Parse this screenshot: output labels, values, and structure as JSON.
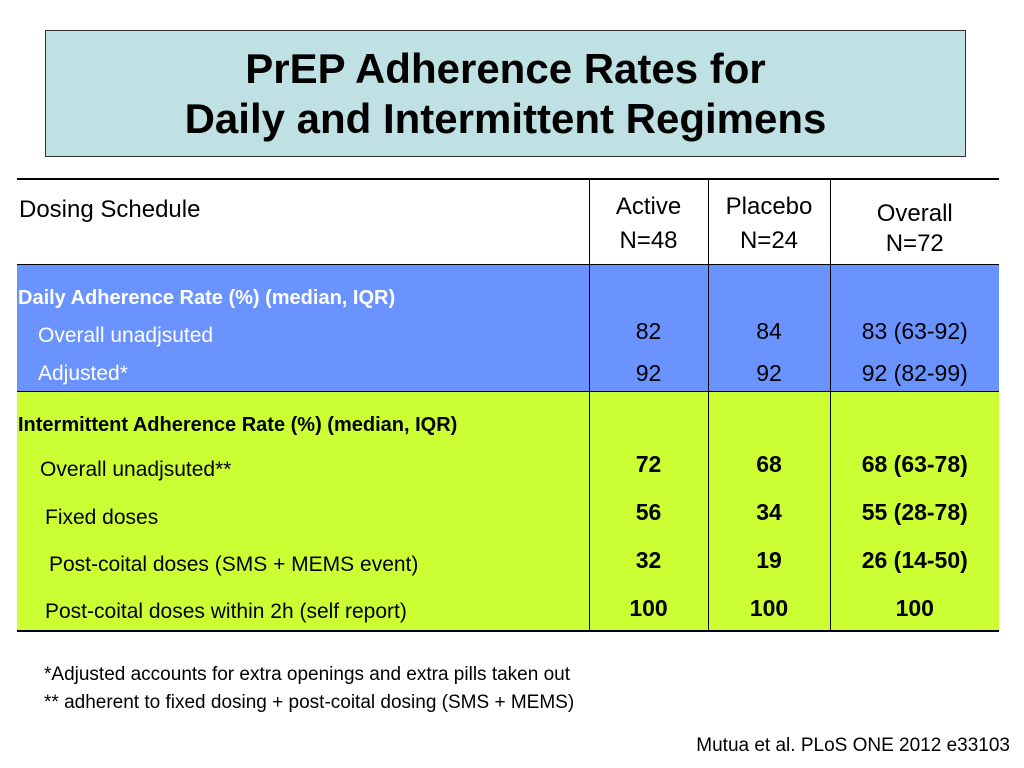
{
  "title": {
    "line1": "PrEP Adherence Rates for",
    "line2": "Daily and Intermittent Regimens"
  },
  "colors": {
    "title_bg": "#bfe1e3",
    "daily_bg": "#6b93ff",
    "intermittent_bg": "#ccff33"
  },
  "table": {
    "headers": {
      "schedule": "Dosing Schedule",
      "active": "Active",
      "active_n": "N=48",
      "placebo": "Placebo",
      "placebo_n": "N=24",
      "overall": "Overall",
      "overall_n": "N=72"
    },
    "daily": {
      "title": "Daily Adherence Rate (%)  (median, IQR)",
      "rows": [
        {
          "label": "Overall unadjsuted",
          "active": "82",
          "placebo": "84",
          "overall": "83 (63-92)"
        },
        {
          "label": "Adjusted*",
          "active": "92",
          "placebo": "92",
          "overall": "92 (82-99)"
        }
      ]
    },
    "intermittent": {
      "title": "Intermittent Adherence Rate (%)  (median, IQR)",
      "rows": [
        {
          "label": "Overall unadjsuted**",
          "active": "72",
          "placebo": "68",
          "overall": "68 (63-78)"
        },
        {
          "label": "Fixed doses",
          "active": "56",
          "placebo": "34",
          "overall": "55 (28-78)"
        },
        {
          "label": "Post-coital doses (SMS + MEMS event)",
          "active": "32",
          "placebo": "19",
          "overall": "26 (14-50)"
        },
        {
          "label": "Post-coital doses within 2h (self report)",
          "active": "100",
          "placebo": "100",
          "overall": "100"
        }
      ]
    }
  },
  "footnotes": [
    "*Adjusted accounts for extra openings and extra pills taken out",
    "** adherent to fixed dosing + post-coital dosing (SMS + MEMS)"
  ],
  "citation": "Mutua et al. PLoS ONE 2012 e33103"
}
